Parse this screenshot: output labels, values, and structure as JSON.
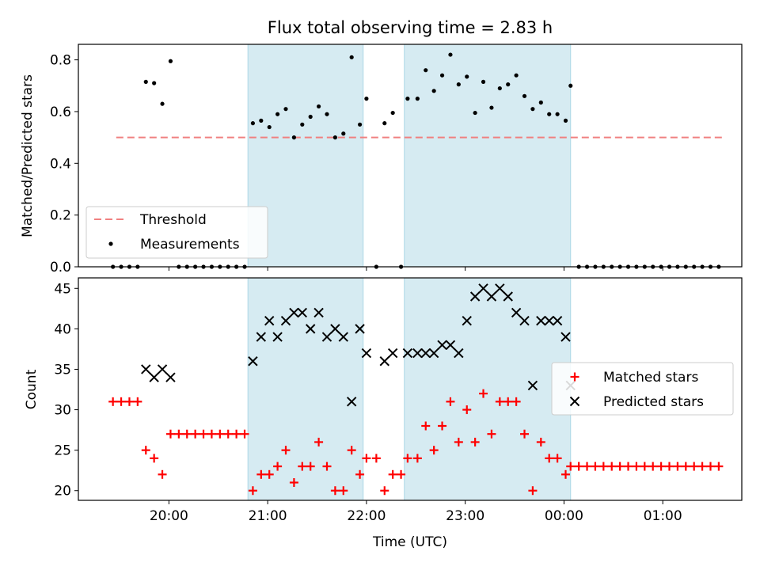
{
  "title": "Flux total observing time = 2.83 h",
  "colors": {
    "threshold": "#f08080",
    "measurement": "#000000",
    "matched": "#ff0000",
    "predicted": "#000000",
    "shade": "#add8e6"
  },
  "chart_data": [
    {
      "type": "scatter",
      "panel": "top",
      "xlabel": "",
      "ylabel": "Matched/Predicted stars",
      "xlim": [
        "19:05",
        "01:48"
      ],
      "ylim": [
        0,
        0.86
      ],
      "yticks": [
        "0.0",
        "0.2",
        "0.4",
        "0.6",
        "0.8"
      ],
      "shaded_spans": [
        [
          "20:48",
          "21:58"
        ],
        [
          "22:23",
          "00:04"
        ]
      ],
      "threshold": {
        "name": "Threshold",
        "value": 0.5,
        "x_range": [
          "19:28",
          "01:37"
        ]
      },
      "legend": {
        "position": "lower-left",
        "entries": [
          "Threshold",
          "Measurements"
        ]
      },
      "series": [
        {
          "name": "Measurements",
          "points": [
            [
              "19:26",
              0
            ],
            [
              "19:31",
              0
            ],
            [
              "19:36",
              0
            ],
            [
              "19:41",
              0
            ],
            [
              "19:46",
              0.715
            ],
            [
              "19:51",
              0.71
            ],
            [
              "19:56",
              0.63
            ],
            [
              "20:01",
              0.795
            ],
            [
              "20:06",
              0
            ],
            [
              "20:11",
              0
            ],
            [
              "20:16",
              0
            ],
            [
              "20:21",
              0
            ],
            [
              "20:26",
              0
            ],
            [
              "20:31",
              0
            ],
            [
              "20:36",
              0
            ],
            [
              "20:41",
              0
            ],
            [
              "20:46",
              0
            ],
            [
              "20:51",
              0.555
            ],
            [
              "20:56",
              0.565
            ],
            [
              "21:01",
              0.54
            ],
            [
              "21:06",
              0.59
            ],
            [
              "21:11",
              0.61
            ],
            [
              "21:16",
              0.5
            ],
            [
              "21:21",
              0.55
            ],
            [
              "21:26",
              0.58
            ],
            [
              "21:31",
              0.62
            ],
            [
              "21:36",
              0.59
            ],
            [
              "21:41",
              0.5
            ],
            [
              "21:46",
              0.515
            ],
            [
              "21:51",
              0.81
            ],
            [
              "21:56",
              0.55
            ],
            [
              "22:00",
              0.65
            ],
            [
              "22:06",
              0
            ],
            [
              "22:11",
              0.555
            ],
            [
              "22:16",
              0.595
            ],
            [
              "22:21",
              0
            ],
            [
              "22:25",
              0.65
            ],
            [
              "22:31",
              0.65
            ],
            [
              "22:36",
              0.76
            ],
            [
              "22:41",
              0.68
            ],
            [
              "22:46",
              0.74
            ],
            [
              "22:51",
              0.82
            ],
            [
              "22:56",
              0.705
            ],
            [
              "23:01",
              0.735
            ],
            [
              "23:06",
              0.595
            ],
            [
              "23:11",
              0.715
            ],
            [
              "23:16",
              0.615
            ],
            [
              "23:21",
              0.69
            ],
            [
              "23:26",
              0.705
            ],
            [
              "23:31",
              0.74
            ],
            [
              "23:36",
              0.66
            ],
            [
              "23:41",
              0.61
            ],
            [
              "23:46",
              0.635
            ],
            [
              "23:51",
              0.59
            ],
            [
              "23:56",
              0.59
            ],
            [
              "00:01",
              0.565
            ],
            [
              "00:04",
              0.7
            ],
            [
              "00:09",
              0
            ],
            [
              "00:14",
              0
            ],
            [
              "00:19",
              0
            ],
            [
              "00:24",
              0
            ],
            [
              "00:29",
              0
            ],
            [
              "00:34",
              0
            ],
            [
              "00:39",
              0
            ],
            [
              "00:44",
              0
            ],
            [
              "00:49",
              0
            ],
            [
              "00:54",
              0
            ],
            [
              "00:59",
              0
            ],
            [
              "01:04",
              0
            ],
            [
              "01:09",
              0
            ],
            [
              "01:14",
              0
            ],
            [
              "01:19",
              0
            ],
            [
              "01:24",
              0
            ],
            [
              "01:29",
              0
            ],
            [
              "01:34",
              0
            ]
          ]
        }
      ]
    },
    {
      "type": "scatter",
      "panel": "bottom",
      "xlabel": "Time (UTC)",
      "ylabel": "Count",
      "xlim": [
        "19:05",
        "01:48"
      ],
      "ylim": [
        18.8,
        46.3
      ],
      "yticks": [
        "20",
        "25",
        "30",
        "35",
        "40",
        "45"
      ],
      "xticks": [
        "20:00",
        "21:00",
        "22:00",
        "23:00",
        "00:00",
        "01:00"
      ],
      "shaded_spans": [
        [
          "20:48",
          "21:58"
        ],
        [
          "22:23",
          "00:04"
        ]
      ],
      "legend": {
        "position": "center-right",
        "entries": [
          "Matched stars",
          "Predicted stars"
        ]
      },
      "series": [
        {
          "name": "Matched stars",
          "marker": "plus",
          "points": [
            [
              "19:26",
              31
            ],
            [
              "19:31",
              31
            ],
            [
              "19:36",
              31
            ],
            [
              "19:41",
              31
            ],
            [
              "19:46",
              25
            ],
            [
              "19:51",
              24
            ],
            [
              "19:56",
              22
            ],
            [
              "20:01",
              27
            ],
            [
              "20:06",
              27
            ],
            [
              "20:11",
              27
            ],
            [
              "20:16",
              27
            ],
            [
              "20:21",
              27
            ],
            [
              "20:26",
              27
            ],
            [
              "20:31",
              27
            ],
            [
              "20:36",
              27
            ],
            [
              "20:41",
              27
            ],
            [
              "20:46",
              27
            ],
            [
              "20:51",
              20
            ],
            [
              "20:56",
              22
            ],
            [
              "21:01",
              22
            ],
            [
              "21:06",
              23
            ],
            [
              "21:11",
              25
            ],
            [
              "21:16",
              21
            ],
            [
              "21:21",
              23
            ],
            [
              "21:26",
              23
            ],
            [
              "21:31",
              26
            ],
            [
              "21:36",
              23
            ],
            [
              "21:41",
              20
            ],
            [
              "21:46",
              20
            ],
            [
              "21:51",
              25
            ],
            [
              "21:56",
              22
            ],
            [
              "22:00",
              24
            ],
            [
              "22:06",
              24
            ],
            [
              "22:11",
              20
            ],
            [
              "22:16",
              22
            ],
            [
              "22:21",
              22
            ],
            [
              "22:25",
              24
            ],
            [
              "22:31",
              24
            ],
            [
              "22:36",
              28
            ],
            [
              "22:41",
              25
            ],
            [
              "22:46",
              28
            ],
            [
              "22:51",
              31
            ],
            [
              "22:56",
              26
            ],
            [
              "23:01",
              30
            ],
            [
              "23:06",
              26
            ],
            [
              "23:11",
              32
            ],
            [
              "23:16",
              27
            ],
            [
              "23:21",
              31
            ],
            [
              "23:26",
              31
            ],
            [
              "23:31",
              31
            ],
            [
              "23:36",
              27
            ],
            [
              "23:41",
              20
            ],
            [
              "23:46",
              26
            ],
            [
              "23:51",
              24
            ],
            [
              "23:56",
              24
            ],
            [
              "00:01",
              22
            ],
            [
              "00:04",
              23
            ],
            [
              "00:09",
              23
            ],
            [
              "00:14",
              23
            ],
            [
              "00:19",
              23
            ],
            [
              "00:24",
              23
            ],
            [
              "00:29",
              23
            ],
            [
              "00:34",
              23
            ],
            [
              "00:39",
              23
            ],
            [
              "00:44",
              23
            ],
            [
              "00:49",
              23
            ],
            [
              "00:54",
              23
            ],
            [
              "00:59",
              23
            ],
            [
              "01:04",
              23
            ],
            [
              "01:09",
              23
            ],
            [
              "01:14",
              23
            ],
            [
              "01:19",
              23
            ],
            [
              "01:24",
              23
            ],
            [
              "01:29",
              23
            ],
            [
              "01:34",
              23
            ]
          ]
        },
        {
          "name": "Predicted stars",
          "marker": "x",
          "points": [
            [
              "19:46",
              35
            ],
            [
              "19:51",
              34
            ],
            [
              "19:56",
              35
            ],
            [
              "20:01",
              34
            ],
            [
              "20:51",
              36
            ],
            [
              "20:56",
              39
            ],
            [
              "21:01",
              41
            ],
            [
              "21:06",
              39
            ],
            [
              "21:11",
              41
            ],
            [
              "21:16",
              42
            ],
            [
              "21:21",
              42
            ],
            [
              "21:26",
              40
            ],
            [
              "21:31",
              42
            ],
            [
              "21:36",
              39
            ],
            [
              "21:41",
              40
            ],
            [
              "21:46",
              39
            ],
            [
              "21:51",
              31
            ],
            [
              "21:56",
              40
            ],
            [
              "22:00",
              37
            ],
            [
              "22:11",
              36
            ],
            [
              "22:16",
              37
            ],
            [
              "22:25",
              37
            ],
            [
              "22:31",
              37
            ],
            [
              "22:36",
              37
            ],
            [
              "22:41",
              37
            ],
            [
              "22:46",
              38
            ],
            [
              "22:51",
              38
            ],
            [
              "22:56",
              37
            ],
            [
              "23:01",
              41
            ],
            [
              "23:06",
              44
            ],
            [
              "23:11",
              45
            ],
            [
              "23:16",
              44
            ],
            [
              "23:21",
              45
            ],
            [
              "23:26",
              44
            ],
            [
              "23:31",
              42
            ],
            [
              "23:36",
              41
            ],
            [
              "23:41",
              33
            ],
            [
              "23:46",
              41
            ],
            [
              "23:51",
              41
            ],
            [
              "23:56",
              41
            ],
            [
              "00:01",
              39
            ],
            [
              "00:04",
              33
            ]
          ]
        }
      ]
    }
  ]
}
